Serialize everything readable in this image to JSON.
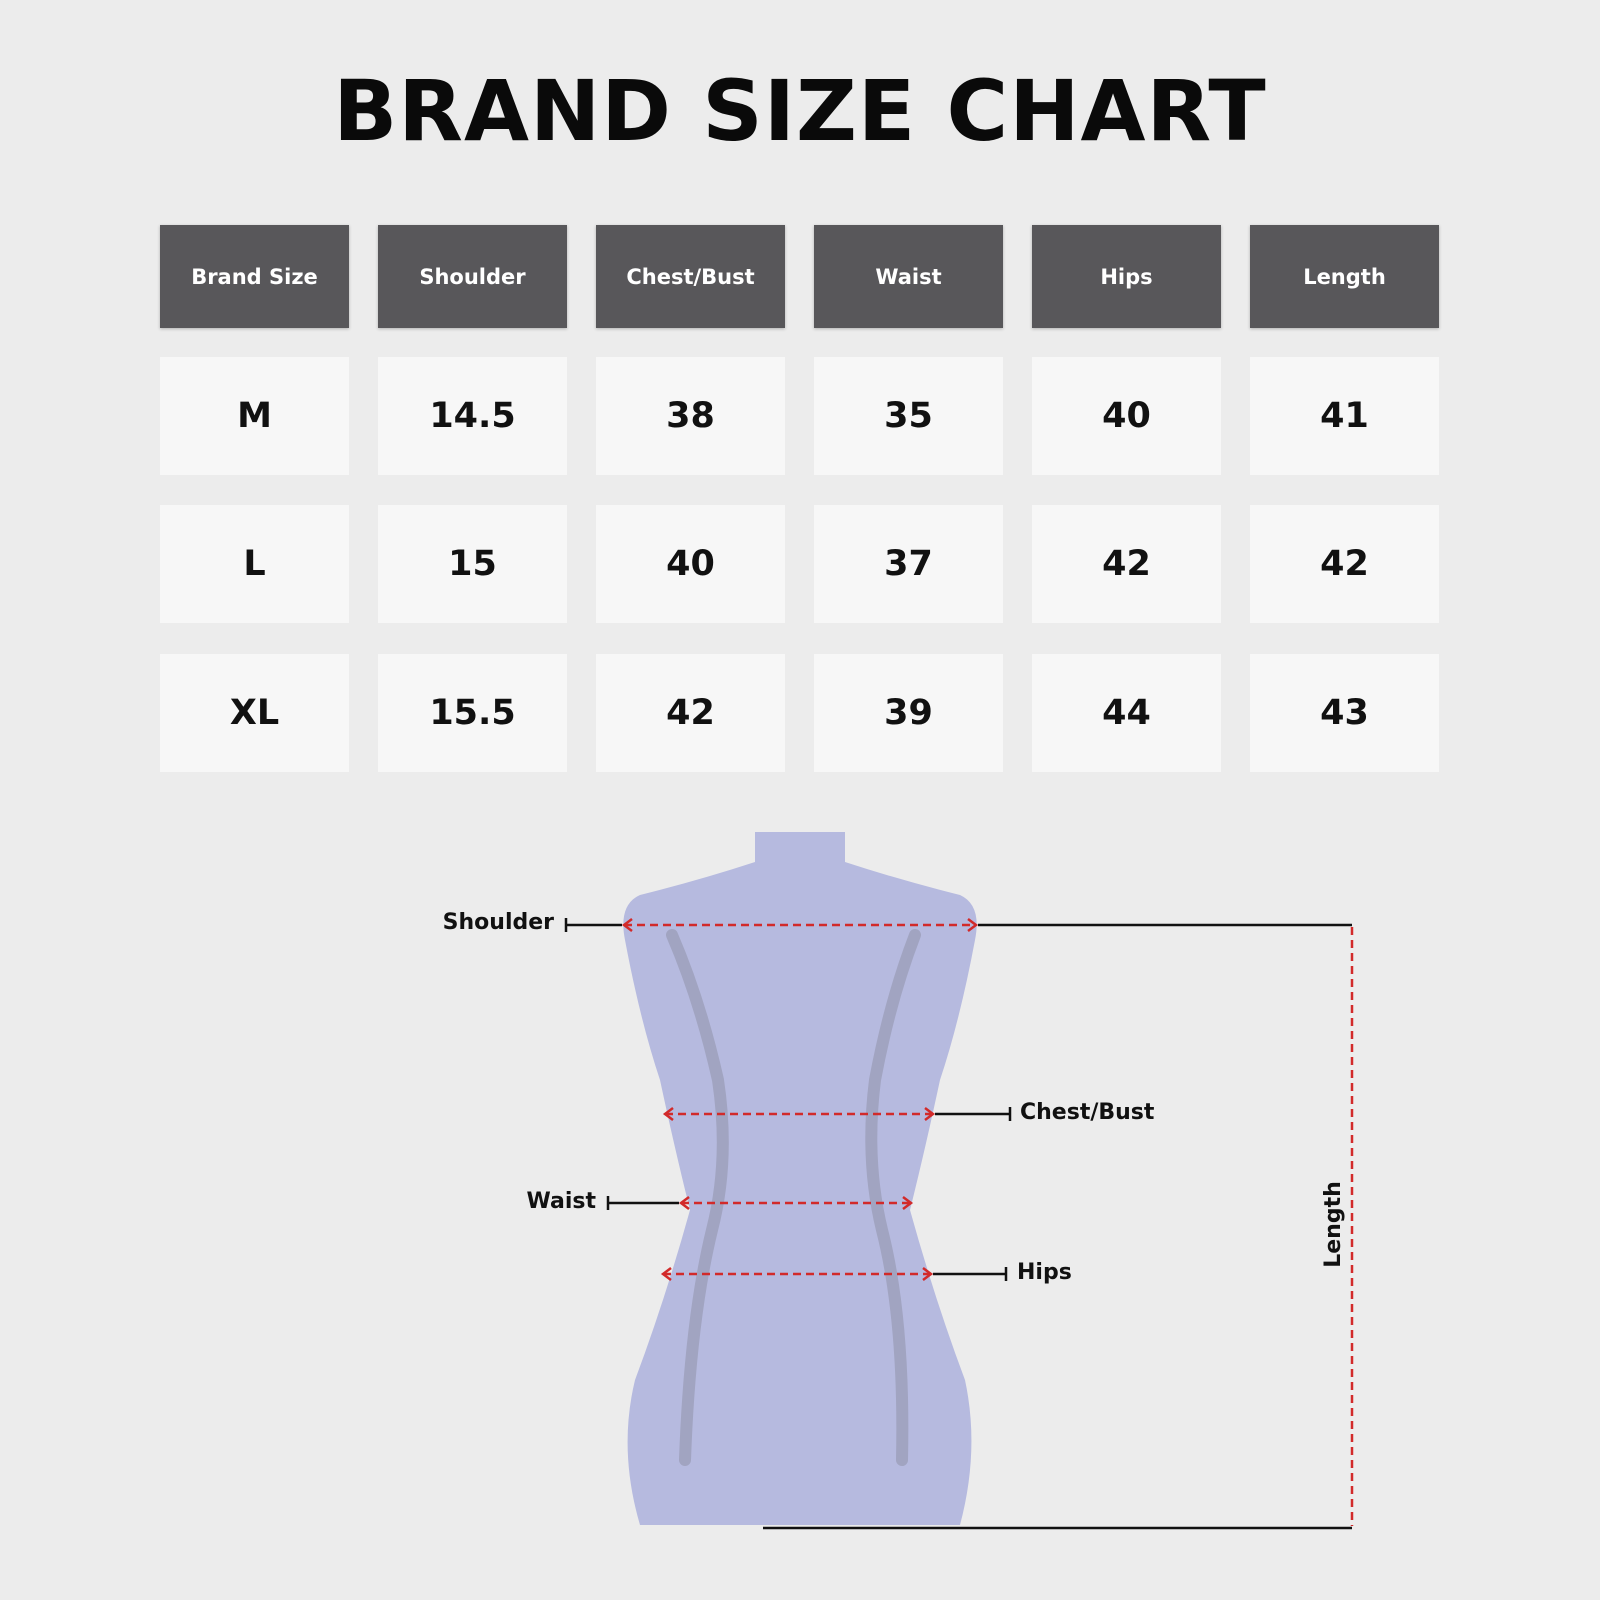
{
  "title": "BRAND SIZE CHART",
  "table": {
    "headers": [
      "Brand Size",
      "Shoulder",
      "Chest/Bust",
      "Waist",
      "Hips",
      "Length"
    ],
    "rows": [
      [
        "M",
        "14.5",
        "38",
        "35",
        "40",
        "41"
      ],
      [
        "L",
        "15",
        "40",
        "37",
        "42",
        "42"
      ],
      [
        "XL",
        "15.5",
        "42",
        "39",
        "44",
        "43"
      ]
    ]
  },
  "diagram": {
    "labels": {
      "shoulder": "Shoulder",
      "chest": "Chest/Bust",
      "waist": "Waist",
      "hips": "Hips",
      "length": "Length"
    }
  },
  "colors": {
    "header_bg": "#58575a",
    "cell_bg": "#f7f7f7",
    "background": "#ececec",
    "mannequin": "#b6badf",
    "measure_line": "#d22a2a"
  }
}
